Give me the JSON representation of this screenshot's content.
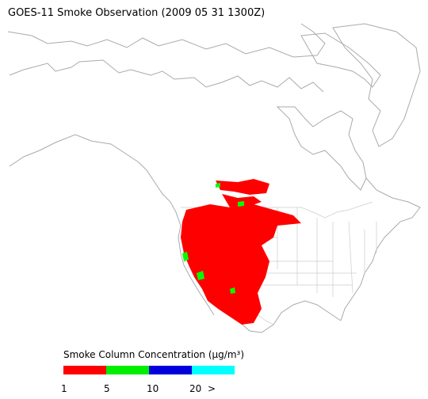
{
  "title": "GOES-11 Smoke Observation (2009 05 31  1300Z)",
  "legend": {
    "title": "Smoke Column Concentration (μg/m³)",
    "colors": [
      "#ff0000",
      "#00ee00",
      "#0000dd",
      "#00ffff"
    ],
    "labels": [
      "1",
      "5",
      "10",
      "20",
      ">"
    ]
  }
}
